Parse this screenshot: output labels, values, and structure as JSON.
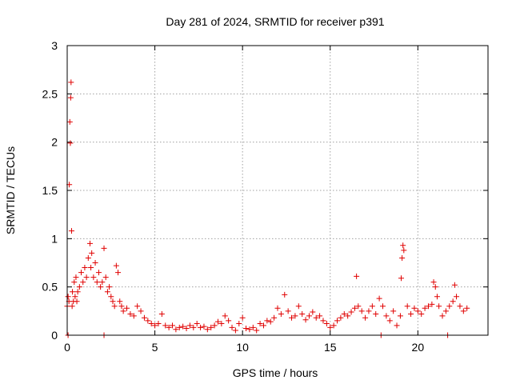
{
  "chart_data": {
    "type": "scatter",
    "title": "Day 281 of 2024, SRMTID for receiver p391",
    "xlabel": "GPS time / hours",
    "ylabel": "SRMTID / TECUs",
    "xlim": [
      0,
      24
    ],
    "ylim": [
      0,
      3
    ],
    "xticks": [
      0,
      5,
      10,
      15,
      20
    ],
    "xtick_labels": [
      "0",
      "5",
      "10",
      "15",
      "20"
    ],
    "yticks": [
      0,
      0.5,
      1,
      1.5,
      2,
      2.5,
      3
    ],
    "ytick_labels": [
      "0",
      "0.5",
      "1",
      "1.5",
      "2",
      "2.5",
      "3"
    ],
    "grid": true,
    "marker": "+",
    "color": "#e00000",
    "series": [
      {
        "name": "SRMTID",
        "x": [
          0.0,
          0.05,
          0.1,
          0.12,
          0.15,
          0.18,
          0.2,
          0.22,
          0.25,
          0.28,
          0.3,
          0.35,
          0.4,
          0.45,
          0.5,
          0.55,
          0.6,
          0.7,
          0.8,
          0.9,
          1.0,
          1.1,
          1.2,
          1.3,
          1.35,
          1.4,
          1.5,
          1.6,
          1.7,
          1.8,
          1.9,
          2.0,
          2.1,
          2.2,
          2.3,
          2.4,
          2.5,
          2.6,
          2.7,
          2.8,
          2.9,
          3.0,
          3.1,
          3.2,
          3.4,
          3.6,
          3.8,
          4.0,
          4.2,
          4.4,
          4.6,
          4.8,
          5.0,
          5.2,
          5.4,
          5.6,
          5.8,
          6.0,
          6.2,
          6.4,
          6.6,
          6.8,
          7.0,
          7.2,
          7.4,
          7.6,
          7.8,
          8.0,
          8.2,
          8.4,
          8.6,
          8.8,
          9.0,
          9.2,
          9.4,
          9.6,
          9.8,
          10.0,
          10.2,
          10.4,
          10.6,
          10.8,
          11.0,
          11.2,
          11.4,
          11.6,
          11.8,
          12.0,
          12.2,
          12.4,
          12.6,
          12.8,
          13.0,
          13.2,
          13.4,
          13.6,
          13.8,
          14.0,
          14.2,
          14.4,
          14.6,
          14.8,
          15.0,
          15.2,
          15.4,
          15.6,
          15.8,
          16.0,
          16.2,
          16.4,
          16.5,
          16.6,
          16.8,
          17.0,
          17.2,
          17.4,
          17.6,
          17.8,
          18.0,
          18.2,
          18.4,
          18.6,
          18.8,
          19.0,
          19.05,
          19.1,
          19.15,
          19.2,
          19.4,
          19.6,
          19.8,
          20.0,
          20.2,
          20.4,
          20.6,
          20.8,
          20.9,
          21.0,
          21.1,
          21.2,
          21.4,
          21.6,
          21.8,
          22.0,
          22.1,
          22.2,
          22.4,
          22.6,
          22.8,
          2.1,
          17.9,
          21.7,
          0.05
        ],
        "y": [
          0.3,
          0.4,
          0.35,
          1.56,
          2.21,
          1.99,
          2.46,
          2.62,
          1.08,
          0.3,
          0.45,
          0.35,
          0.55,
          0.4,
          0.6,
          0.35,
          0.45,
          0.5,
          0.65,
          0.55,
          0.7,
          0.6,
          0.8,
          0.95,
          0.7,
          0.85,
          0.6,
          0.75,
          0.55,
          0.65,
          0.5,
          0.55,
          0.9,
          0.6,
          0.45,
          0.5,
          0.4,
          0.35,
          0.3,
          0.72,
          0.65,
          0.35,
          0.3,
          0.25,
          0.28,
          0.22,
          0.2,
          0.3,
          0.25,
          0.18,
          0.15,
          0.12,
          0.1,
          0.12,
          0.22,
          0.1,
          0.08,
          0.1,
          0.06,
          0.08,
          0.09,
          0.07,
          0.1,
          0.08,
          0.12,
          0.08,
          0.09,
          0.06,
          0.08,
          0.1,
          0.14,
          0.12,
          0.2,
          0.15,
          0.08,
          0.05,
          0.12,
          0.18,
          0.07,
          0.06,
          0.08,
          0.05,
          0.12,
          0.1,
          0.15,
          0.14,
          0.18,
          0.28,
          0.22,
          0.42,
          0.25,
          0.18,
          0.2,
          0.3,
          0.22,
          0.16,
          0.2,
          0.24,
          0.18,
          0.2,
          0.15,
          0.12,
          0.08,
          0.1,
          0.15,
          0.18,
          0.22,
          0.2,
          0.24,
          0.28,
          0.61,
          0.3,
          0.25,
          0.18,
          0.25,
          0.3,
          0.22,
          0.38,
          0.3,
          0.2,
          0.15,
          0.25,
          0.1,
          0.2,
          0.59,
          0.8,
          0.93,
          0.88,
          0.3,
          0.22,
          0.28,
          0.25,
          0.22,
          0.28,
          0.3,
          0.32,
          0.55,
          0.5,
          0.4,
          0.3,
          0.2,
          0.25,
          0.3,
          0.35,
          0.52,
          0.4,
          0.3,
          0.25,
          0.28,
          0.0,
          0.0,
          0.0,
          0.0
        ]
      }
    ]
  }
}
